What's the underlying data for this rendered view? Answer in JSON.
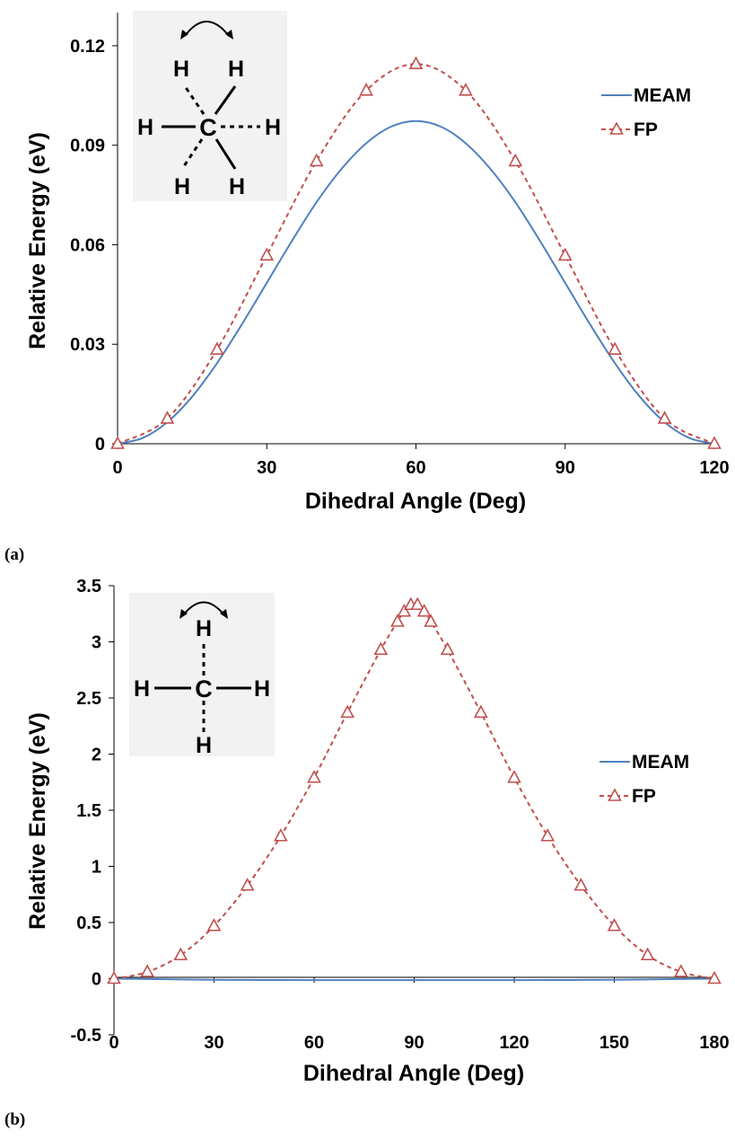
{
  "chart_data": [
    {
      "type": "line",
      "panel_label": "(a)",
      "xlabel": "Dihedral Angle (Deg)",
      "ylabel": "Relative Energy (eV)",
      "xlim": [
        0,
        120
      ],
      "ylim": [
        0,
        0.13
      ],
      "xticks": [
        0,
        30,
        60,
        90,
        120
      ],
      "yticks": [
        0,
        0.03,
        0.06,
        0.09,
        0.12
      ],
      "xtick_labels": [
        "0",
        "30",
        "60",
        "90",
        "120"
      ],
      "ytick_labels": [
        "0",
        "0.03",
        "0.06",
        "0.09",
        "0.12"
      ],
      "legend_position": "top-right",
      "series": [
        {
          "name": "MEAM",
          "color": "#4f81bd",
          "style": "solid",
          "x": [
            0,
            5,
            10,
            15,
            20,
            25,
            30,
            35,
            40,
            45,
            50,
            55,
            60,
            65,
            70,
            75,
            80,
            85,
            90,
            95,
            100,
            105,
            110,
            115,
            120
          ],
          "y": [
            0,
            0.0017,
            0.0065,
            0.0142,
            0.0243,
            0.036,
            0.0485,
            0.061,
            0.0728,
            0.0828,
            0.0906,
            0.0956,
            0.0973,
            0.0956,
            0.0906,
            0.0828,
            0.0728,
            0.061,
            0.0485,
            0.036,
            0.0243,
            0.0142,
            0.0065,
            0.0017,
            0
          ]
        },
        {
          "name": "FP",
          "color": "#c0504d",
          "style": "dashed",
          "marker": "triangle",
          "x": [
            0,
            10,
            20,
            30,
            40,
            50,
            60,
            70,
            80,
            90,
            100,
            110,
            120
          ],
          "y": [
            0,
            0.0076,
            0.0284,
            0.0568,
            0.0852,
            0.1065,
            0.1145,
            0.1065,
            0.0852,
            0.0568,
            0.0284,
            0.0076,
            0
          ]
        }
      ],
      "inset": {
        "type": "molecule-staggered",
        "atoms": {
          "center": "C",
          "h": "H"
        }
      }
    },
    {
      "type": "line",
      "panel_label": "(b)",
      "xlabel": "Dihedral Angle (Deg)",
      "ylabel": "Relative Energy (eV)",
      "xlim": [
        0,
        180
      ],
      "ylim": [
        -0.5,
        3.5
      ],
      "xticks": [
        0,
        30,
        60,
        90,
        120,
        150,
        180
      ],
      "yticks": [
        -0.5,
        0,
        0.5,
        1,
        1.5,
        2,
        2.5,
        3,
        3.5
      ],
      "xtick_labels": [
        "0",
        "30",
        "60",
        "90",
        "120",
        "150",
        "180"
      ],
      "ytick_labels": [
        "-0.5",
        "0",
        "0.5",
        "1",
        "1.5",
        "2",
        "2.5",
        "3",
        "3.5"
      ],
      "legend_position": "right",
      "series": [
        {
          "name": "MEAM",
          "color": "#4f81bd",
          "style": "solid",
          "x": [
            0,
            10,
            20,
            30,
            45,
            60,
            90,
            120,
            135,
            150,
            160,
            170,
            180
          ],
          "y": [
            0,
            -0.003,
            -0.007,
            -0.01,
            -0.012,
            -0.013,
            -0.013,
            -0.013,
            -0.012,
            -0.01,
            -0.007,
            -0.003,
            0
          ]
        },
        {
          "name": "FP",
          "color": "#c0504d",
          "style": "dashed",
          "marker": "triangle",
          "x": [
            0,
            10,
            20,
            30,
            40,
            50,
            60,
            70,
            80,
            85,
            87,
            89,
            91,
            93,
            95,
            100,
            110,
            120,
            130,
            140,
            150,
            160,
            170,
            180
          ],
          "y": [
            0,
            0.06,
            0.21,
            0.47,
            0.83,
            1.27,
            1.79,
            2.37,
            2.93,
            3.18,
            3.27,
            3.33,
            3.33,
            3.27,
            3.18,
            2.93,
            2.37,
            1.79,
            1.27,
            0.83,
            0.47,
            0.21,
            0.06,
            0
          ]
        }
      ],
      "inset": {
        "type": "molecule-planar",
        "atoms": {
          "center": "C",
          "h": "H"
        }
      }
    }
  ]
}
